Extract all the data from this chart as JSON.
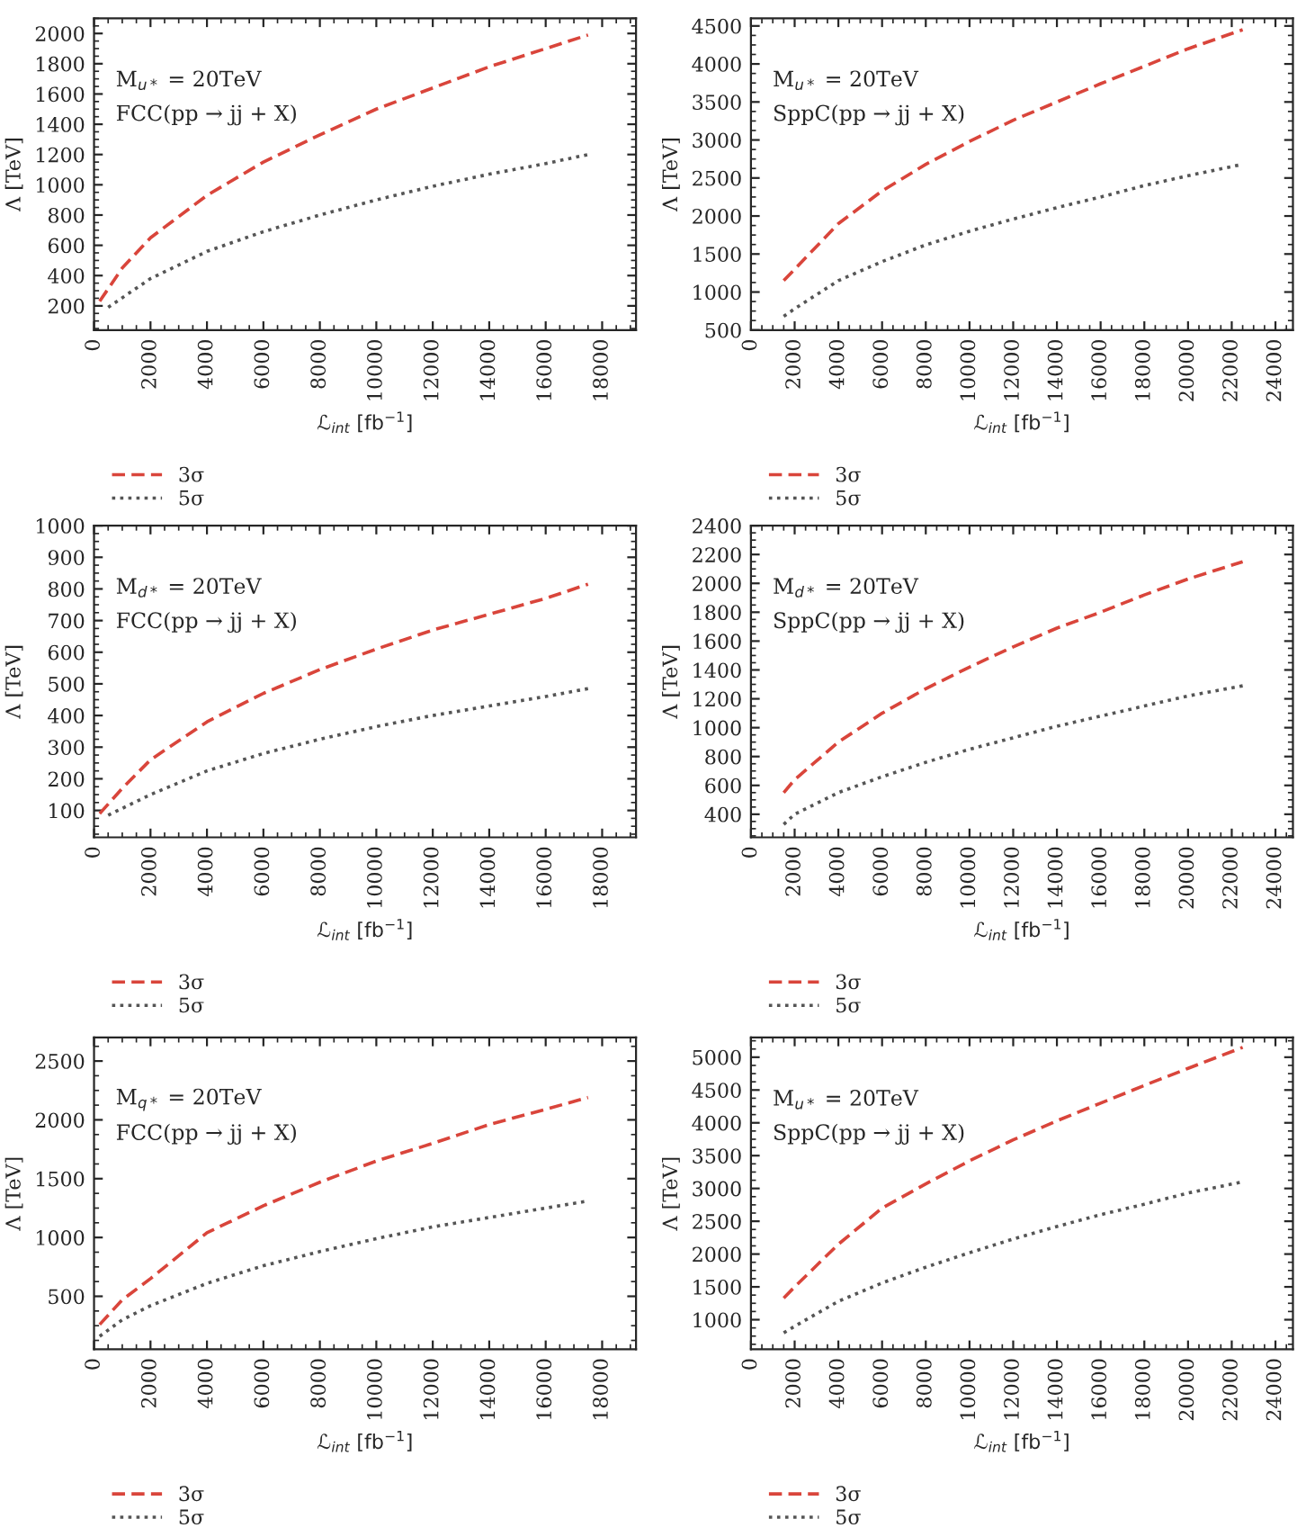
{
  "chart_data": [
    {
      "type": "line",
      "xlabel": "ℒ$_{int}$ [fb$^{−1}$]",
      "ylabel": "Λ [TeV]",
      "annotations": [
        "M$_{u*}$ = 20TeV",
        "FCC(pp → jj + X)"
      ],
      "xlim": [
        0,
        19200
      ],
      "xticks": [
        0,
        2000,
        4000,
        6000,
        8000,
        10000,
        12000,
        14000,
        16000,
        18000
      ],
      "ylim": [
        40,
        2100
      ],
      "yticks": [
        200,
        400,
        600,
        800,
        1000,
        1200,
        1400,
        1600,
        1800,
        2000
      ],
      "legend": "bottom",
      "grid": false,
      "series": [
        {
          "name": "3σ",
          "color": "#d9453b",
          "line_style": "dashed",
          "x": [
            200,
            1000,
            2000,
            4000,
            6000,
            8000,
            10000,
            12000,
            14000,
            16000,
            17500
          ],
          "values": [
            230,
            450,
            650,
            930,
            1150,
            1330,
            1500,
            1640,
            1780,
            1900,
            1990
          ]
        },
        {
          "name": "5σ",
          "color": "#555555",
          "line_style": "dotted",
          "x": [
            500,
            2000,
            4000,
            6000,
            8000,
            10000,
            12000,
            14000,
            16000,
            17500
          ],
          "values": [
            190,
            380,
            560,
            690,
            800,
            900,
            990,
            1070,
            1140,
            1200
          ]
        }
      ]
    },
    {
      "type": "line",
      "xlabel": "ℒ$_{int}$ [fb$^{−1}$]",
      "ylabel": "Λ [TeV]",
      "annotations": [
        "M$_{u*}$ = 20TeV",
        "SppC(pp → jj + X)"
      ],
      "xlim": [
        0,
        24800
      ],
      "xticks": [
        0,
        2000,
        4000,
        6000,
        8000,
        10000,
        12000,
        14000,
        16000,
        18000,
        20000,
        22000,
        24000
      ],
      "ylim": [
        500,
        4600
      ],
      "yticks": [
        500,
        1000,
        1500,
        2000,
        2500,
        3000,
        3500,
        4000,
        4500
      ],
      "legend": "bottom",
      "grid": false,
      "series": [
        {
          "name": "3σ",
          "color": "#d9453b",
          "line_style": "dashed",
          "x": [
            1500,
            2000,
            4000,
            6000,
            8000,
            10000,
            12000,
            14000,
            16000,
            18000,
            20000,
            22500
          ],
          "values": [
            1150,
            1300,
            1900,
            2330,
            2680,
            2980,
            3260,
            3500,
            3740,
            3970,
            4200,
            4450
          ]
        },
        {
          "name": "5σ",
          "color": "#555555",
          "line_style": "dotted",
          "x": [
            1500,
            2000,
            4000,
            6000,
            8000,
            10000,
            12000,
            14000,
            16000,
            18000,
            20000,
            22500
          ],
          "values": [
            680,
            780,
            1150,
            1400,
            1620,
            1800,
            1960,
            2110,
            2250,
            2400,
            2530,
            2680
          ]
        }
      ]
    },
    {
      "type": "line",
      "xlabel": "ℒ$_{int}$ [fb$^{−1}$]",
      "ylabel": "Λ [TeV]",
      "annotations": [
        "M$_{d*}$ = 20TeV",
        "FCC(pp → jj + X)"
      ],
      "xlim": [
        0,
        19200
      ],
      "xticks": [
        0,
        2000,
        4000,
        6000,
        8000,
        10000,
        12000,
        14000,
        16000,
        18000
      ],
      "ylim": [
        15,
        1000
      ],
      "yticks": [
        100,
        200,
        300,
        400,
        500,
        600,
        700,
        800,
        900,
        1000
      ],
      "legend": "bottom",
      "grid": false,
      "series": [
        {
          "name": "3σ",
          "color": "#d9453b",
          "line_style": "dashed",
          "x": [
            200,
            1000,
            2000,
            4000,
            6000,
            8000,
            10000,
            12000,
            14000,
            16000,
            17500
          ],
          "values": [
            90,
            170,
            260,
            380,
            470,
            545,
            610,
            670,
            720,
            770,
            815
          ]
        },
        {
          "name": "5σ",
          "color": "#555555",
          "line_style": "dotted",
          "x": [
            500,
            2000,
            4000,
            6000,
            8000,
            10000,
            12000,
            14000,
            16000,
            17500
          ],
          "values": [
            85,
            150,
            225,
            280,
            325,
            365,
            400,
            430,
            460,
            485
          ]
        }
      ]
    },
    {
      "type": "line",
      "xlabel": "ℒ$_{int}$ [fb$^{−1}$]",
      "ylabel": "Λ [TeV]",
      "annotations": [
        "M$_{d*}$ = 20TeV",
        "SppC(pp → jj + X)"
      ],
      "xlim": [
        0,
        24800
      ],
      "xticks": [
        0,
        2000,
        4000,
        6000,
        8000,
        10000,
        12000,
        14000,
        16000,
        18000,
        20000,
        22000,
        24000
      ],
      "ylim": [
        240,
        2400
      ],
      "yticks": [
        400,
        600,
        800,
        1000,
        1200,
        1400,
        1600,
        1800,
        2000,
        2200,
        2400
      ],
      "legend": "bottom",
      "grid": false,
      "series": [
        {
          "name": "3σ",
          "color": "#d9453b",
          "line_style": "dashed",
          "x": [
            1500,
            2000,
            4000,
            6000,
            8000,
            10000,
            12000,
            14000,
            16000,
            18000,
            20000,
            22500
          ],
          "values": [
            550,
            640,
            900,
            1100,
            1270,
            1420,
            1560,
            1690,
            1800,
            1920,
            2030,
            2150
          ]
        },
        {
          "name": "5σ",
          "color": "#555555",
          "line_style": "dotted",
          "x": [
            1500,
            2000,
            4000,
            6000,
            8000,
            10000,
            12000,
            14000,
            16000,
            18000,
            20000,
            22500
          ],
          "values": [
            330,
            400,
            550,
            660,
            760,
            850,
            930,
            1010,
            1080,
            1150,
            1220,
            1290
          ]
        }
      ]
    },
    {
      "type": "line",
      "xlabel": "ℒ$_{int}$ [fb$^{−1}$]",
      "ylabel": "Λ [TeV]",
      "annotations": [
        "M$_{q*}$ = 20TeV",
        "FCC(pp → jj + X)"
      ],
      "xlim": [
        0,
        19200
      ],
      "xticks": [
        0,
        2000,
        4000,
        6000,
        8000,
        10000,
        12000,
        14000,
        16000,
        18000
      ],
      "ylim": [
        50,
        2700
      ],
      "yticks": [
        500,
        1000,
        1500,
        2000,
        2500
      ],
      "legend": "bottom",
      "grid": false,
      "series": [
        {
          "name": "3σ",
          "color": "#d9453b",
          "line_style": "dashed",
          "x": [
            200,
            1000,
            2000,
            4000,
            6000,
            8000,
            10000,
            12000,
            14000,
            16000,
            17500
          ],
          "values": [
            260,
            470,
            650,
            1040,
            1270,
            1470,
            1650,
            1800,
            1960,
            2090,
            2190
          ]
        },
        {
          "name": "5σ",
          "color": "#555555",
          "line_style": "dotted",
          "x": [
            200,
            1000,
            2000,
            4000,
            6000,
            8000,
            10000,
            12000,
            14000,
            16000,
            17500
          ],
          "values": [
            160,
            300,
            420,
            610,
            760,
            880,
            990,
            1090,
            1170,
            1250,
            1310
          ]
        }
      ]
    },
    {
      "type": "line",
      "xlabel": "ℒ$_{int}$ [fb$^{−1}$]",
      "ylabel": "Λ [TeV]",
      "annotations": [
        "M$_{u*}$ = 20TeV",
        "SppC(pp → jj + X)"
      ],
      "xlim": [
        0,
        24800
      ],
      "xticks": [
        0,
        2000,
        4000,
        6000,
        8000,
        10000,
        12000,
        14000,
        16000,
        18000,
        20000,
        22000,
        24000
      ],
      "ylim": [
        550,
        5300
      ],
      "yticks": [
        1000,
        1500,
        2000,
        2500,
        3000,
        3500,
        4000,
        4500,
        5000
      ],
      "legend": "bottom",
      "grid": false,
      "series": [
        {
          "name": "3σ",
          "color": "#d9453b",
          "line_style": "dashed",
          "x": [
            1500,
            2000,
            4000,
            6000,
            8000,
            10000,
            12000,
            14000,
            16000,
            18000,
            20000,
            22500
          ],
          "values": [
            1330,
            1500,
            2150,
            2700,
            3070,
            3420,
            3740,
            4030,
            4300,
            4570,
            4830,
            5150
          ]
        },
        {
          "name": "5σ",
          "color": "#555555",
          "line_style": "dotted",
          "x": [
            1500,
            2000,
            4000,
            6000,
            8000,
            10000,
            12000,
            14000,
            16000,
            18000,
            20000,
            22500
          ],
          "values": [
            800,
            900,
            1280,
            1560,
            1800,
            2020,
            2230,
            2420,
            2600,
            2760,
            2930,
            3100
          ]
        }
      ]
    }
  ]
}
